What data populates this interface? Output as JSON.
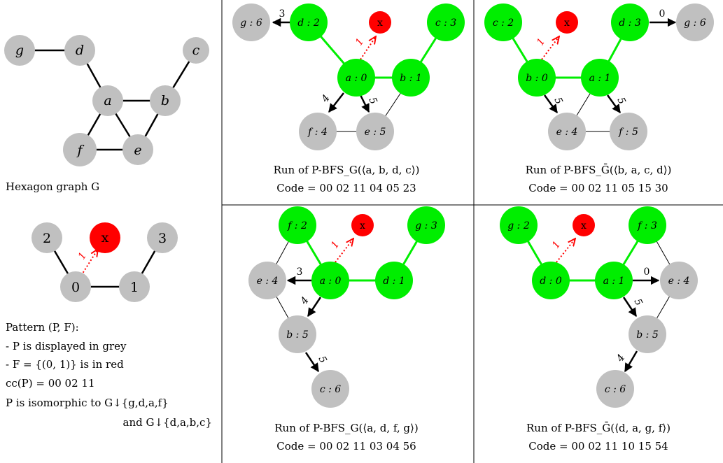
{
  "hexagon": {
    "caption": "Hexagon graph G",
    "nodes": {
      "g": "g",
      "d": "d",
      "c": "c",
      "a": "a",
      "b": "b",
      "f": "f",
      "e": "e"
    }
  },
  "pattern": {
    "nodes": {
      "n0": "0",
      "n1": "1",
      "n2": "2",
      "n3": "3",
      "x": "x"
    },
    "edge_label": "1",
    "lines": [
      "Pattern (P, F):",
      "- P is displayed in grey",
      "- F = {(0, 1)} is in red",
      "cc(P) = 00 02 11",
      "P is isomorphic to G↓{g,d,a,f}",
      "and G↓{d,a,b,c}"
    ]
  },
  "runs": [
    {
      "nodes": {
        "g": "g : 6",
        "d": "d : 2",
        "x": "x",
        "c": "c : 3",
        "a": "a : 0",
        "b": "b : 1",
        "f": "f : 4",
        "e": "e : 5"
      },
      "edge_labels": {
        "dg": "3",
        "ax": "1",
        "af": "4",
        "ae": "5"
      },
      "caption": "Run of P-BFS_G(⟨a, b, d, c⟩)",
      "code": "Code = 00 02 11 04 05 23"
    },
    {
      "nodes": {
        "c": "c : 2",
        "x": "x",
        "d": "d : 3",
        "g": "g : 6",
        "b": "b : 0",
        "a": "a : 1",
        "e": "e : 4",
        "f": "f : 5"
      },
      "edge_labels": {
        "dg": "0",
        "bx": "1",
        "be": "5",
        "af": "5"
      },
      "caption": "Run of P-BFS_Ḡ(⟨b, a, c, d⟩)",
      "code": "Code = 00 02 11 05 15 30"
    },
    {
      "nodes": {
        "f": "f : 2",
        "x": "x",
        "g": "g : 3",
        "e": "e : 4",
        "a": "a : 0",
        "d": "d : 1",
        "b": "b : 5",
        "c": "c : 6"
      },
      "edge_labels": {
        "ae": "3",
        "ax": "1",
        "ab": "4",
        "bc": "5"
      },
      "caption": "Run of P-BFS_G(⟨a, d, f, g⟩)",
      "code": "Code = 00 02 11 03 04 56"
    },
    {
      "nodes": {
        "g": "g : 2",
        "x": "x",
        "f": "f : 3",
        "d": "d : 0",
        "a": "a : 1",
        "e": "e : 4",
        "b": "b : 5",
        "c": "c : 6"
      },
      "edge_labels": {
        "ae": "0",
        "dx": "1",
        "ab": "5",
        "bc": "4"
      },
      "caption": "Run of P-BFS_Ḡ(⟨d, a, g, f⟩)",
      "code": "Code = 00 02 11 10 15 54"
    }
  ],
  "colors": {
    "grey": "#c0c0c0",
    "green": "#00ee00",
    "red": "#ff0000"
  }
}
